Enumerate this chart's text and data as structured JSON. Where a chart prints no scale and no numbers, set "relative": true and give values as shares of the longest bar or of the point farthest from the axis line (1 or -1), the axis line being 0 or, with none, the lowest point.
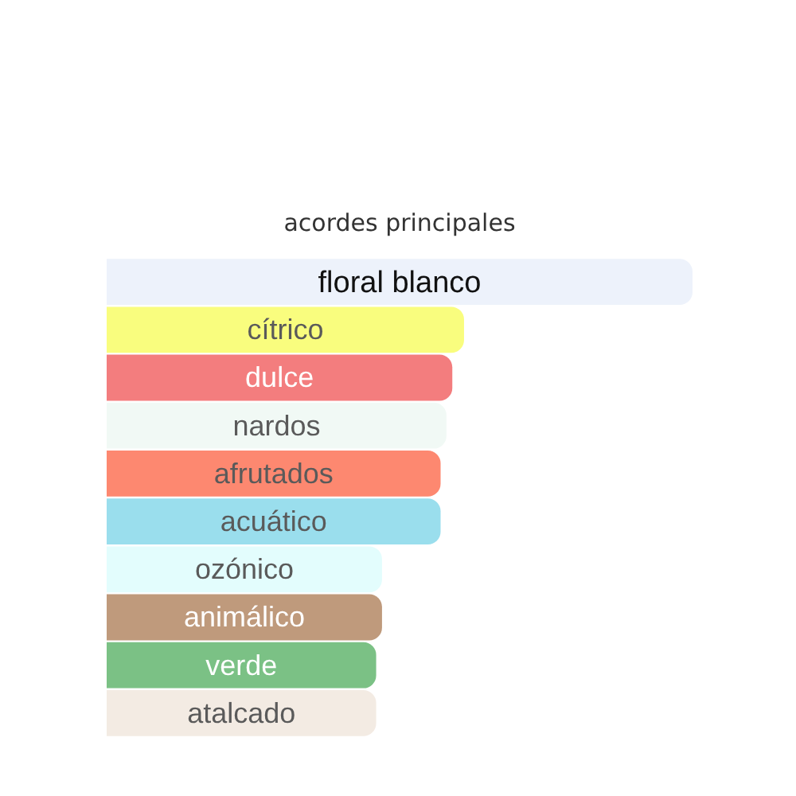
{
  "chart_data": {
    "type": "bar",
    "orientation": "horizontal",
    "relative": true,
    "title": "acordes principales",
    "categories": [
      "floral blanco",
      "cítrico",
      "dulce",
      "nardos",
      "afrutados",
      "acuático",
      "ozónico",
      "animálico",
      "verde",
      "atalcado"
    ],
    "values": [
      1,
      0.61,
      0.59,
      0.58,
      0.57,
      0.57,
      0.47,
      0.47,
      0.46,
      0.46
    ],
    "colors": [
      "#edf2fb",
      "#f9fd7e",
      "#f37d7e",
      "#f1f9f5",
      "#fd8870",
      "#9adeed",
      "#e3fdfd",
      "#bf9a7c",
      "#7bc185",
      "#f3ebe3"
    ]
  }
}
